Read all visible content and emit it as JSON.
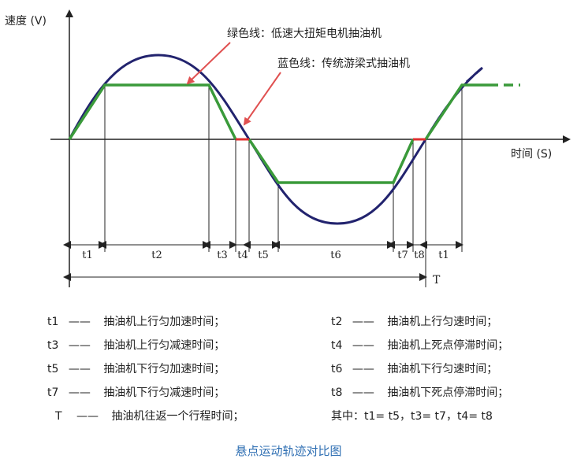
{
  "diagram": {
    "y_axis_label": "速度 (V)",
    "x_axis_label": "时间 (S)",
    "annotation_green": "绿色线：低速大扭矩电机抽油机",
    "annotation_blue": "蓝色线：传统游梁式抽油机",
    "colors": {
      "green_line": "#3a9a3a",
      "blue_line": "#22236e",
      "arrow": "#e05050",
      "dwell": "#e03030",
      "caption": "#2f6fb3"
    },
    "segments": [
      "t1",
      "t2",
      "t3",
      "t4",
      "t5",
      "t6",
      "t7",
      "t8",
      "t1"
    ],
    "period_label": "T"
  },
  "legend": [
    {
      "key": "t1",
      "desc": "抽油机上行匀加速时间；"
    },
    {
      "key": "t2",
      "desc": "抽油机上行匀速时间；"
    },
    {
      "key": "t3",
      "desc": "抽油机上行匀减速时间；"
    },
    {
      "key": "t4",
      "desc": "抽油机上死点停滞时间；"
    },
    {
      "key": "t5",
      "desc": "抽油机下行匀加速时间；"
    },
    {
      "key": "t6",
      "desc": "抽油机下行匀速时间；"
    },
    {
      "key": "t7",
      "desc": "抽油机下行匀减速时间；"
    },
    {
      "key": "t8",
      "desc": "抽油机下死点停滞时间；"
    },
    {
      "key": "T",
      "desc": "抽油机往返一个行程时间；"
    }
  ],
  "legend_dash": "——",
  "note": "其中：t1= t5，t3= t7，t4= t8",
  "caption": "悬点运动轨迹对比图"
}
